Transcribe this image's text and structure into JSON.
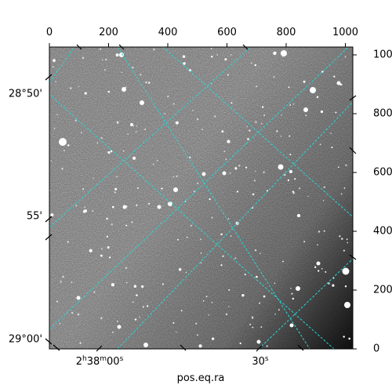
{
  "figure": {
    "x_label": "pos.eq.ra",
    "top_axis_ticks": [
      "0",
      "200",
      "400",
      "600",
      "800",
      "1000"
    ],
    "right_axis_ticks": [
      "0",
      "200",
      "400",
      "600",
      "800",
      "1000"
    ],
    "dec_ticks": [
      "28°50'",
      "55'",
      "29°00'"
    ],
    "ra_ticks": [
      {
        "h": "2",
        "m": "38",
        "s": "00"
      },
      {
        "s": "30"
      }
    ],
    "grid_color": "#2ad6d6",
    "image_style": "grayscale star field with dark background gradient toward lower right"
  }
}
